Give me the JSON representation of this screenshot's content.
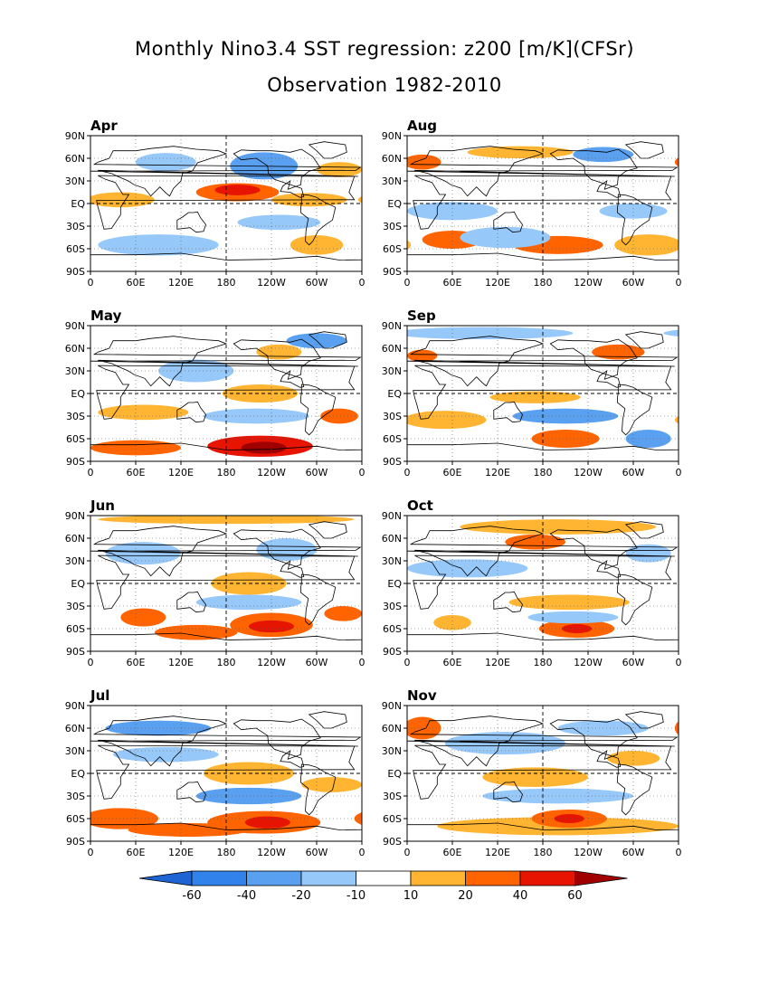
{
  "figure": {
    "title": "Monthly Nino3.4 SST regression: z200 [m/K](CFSr)",
    "subtitle": "Observation 1982-2010"
  },
  "axes": {
    "lat_ticks": [
      "90N",
      "60N",
      "30N",
      "EQ",
      "30S",
      "60S",
      "90S"
    ],
    "lon_ticks": [
      "0",
      "60E",
      "120E",
      "180",
      "120W",
      "60W",
      "0"
    ]
  },
  "colorbar": {
    "labels": [
      "-60",
      "-40",
      "-20",
      "-10",
      "10",
      "20",
      "40",
      "60"
    ],
    "colors": {
      "lt_neg60": "#1e64d2",
      "neg60_neg40": "#3282ec",
      "neg40_neg20": "#5aa0f0",
      "neg20_neg10": "#96c8fa",
      "neg10_10": "#ffffff",
      "p10_20": "#ffb432",
      "p20_40": "#ff6400",
      "p40_60": "#e61400",
      "gt_60": "#a00000"
    }
  },
  "panels": [
    {
      "month": "Apr",
      "blobs": [
        {
          "lon": 195,
          "lat": 15,
          "rx": 55,
          "ry": 12,
          "level": 2
        },
        {
          "lon": 195,
          "lat": 18,
          "rx": 30,
          "ry": 7,
          "level": 3
        },
        {
          "lon": 40,
          "lat": 5,
          "rx": 45,
          "ry": 10,
          "level": 1
        },
        {
          "lon": 290,
          "lat": 5,
          "rx": 50,
          "ry": 9,
          "level": 1
        },
        {
          "lon": 250,
          "lat": -25,
          "rx": 55,
          "ry": 10,
          "level": -1
        },
        {
          "lon": 90,
          "lat": -55,
          "rx": 80,
          "ry": 14,
          "level": -1
        },
        {
          "lon": 300,
          "lat": -55,
          "rx": 35,
          "ry": 13,
          "level": 1
        },
        {
          "lon": 230,
          "lat": 50,
          "rx": 45,
          "ry": 18,
          "level": -2
        },
        {
          "lon": 100,
          "lat": 55,
          "rx": 40,
          "ry": 12,
          "level": -1
        },
        {
          "lon": 330,
          "lat": 45,
          "rx": 30,
          "ry": 10,
          "level": 1
        }
      ]
    },
    {
      "month": "Aug",
      "blobs": [
        {
          "lon": 60,
          "lat": -48,
          "rx": 40,
          "ry": 12,
          "level": 2
        },
        {
          "lon": 200,
          "lat": -55,
          "rx": 60,
          "ry": 12,
          "level": 2
        },
        {
          "lon": 320,
          "lat": -55,
          "rx": 45,
          "ry": 14,
          "level": 1
        },
        {
          "lon": 130,
          "lat": -45,
          "rx": 60,
          "ry": 14,
          "level": -1
        },
        {
          "lon": 260,
          "lat": 65,
          "rx": 40,
          "ry": 10,
          "level": -2
        },
        {
          "lon": 150,
          "lat": 68,
          "rx": 70,
          "ry": 8,
          "level": 1
        },
        {
          "lon": 20,
          "lat": 55,
          "rx": 25,
          "ry": 10,
          "level": 2
        },
        {
          "lon": 60,
          "lat": -10,
          "rx": 60,
          "ry": 12,
          "level": -1
        },
        {
          "lon": 300,
          "lat": -10,
          "rx": 45,
          "ry": 10,
          "level": -1
        }
      ]
    },
    {
      "month": "May",
      "blobs": [
        {
          "lon": 225,
          "lat": -70,
          "rx": 70,
          "ry": 14,
          "level": 3
        },
        {
          "lon": 230,
          "lat": -72,
          "rx": 30,
          "ry": 8,
          "level": 4
        },
        {
          "lon": 225,
          "lat": 0,
          "rx": 50,
          "ry": 12,
          "level": 1
        },
        {
          "lon": 220,
          "lat": -30,
          "rx": 70,
          "ry": 10,
          "level": -1
        },
        {
          "lon": 60,
          "lat": -72,
          "rx": 60,
          "ry": 10,
          "level": 2
        },
        {
          "lon": 70,
          "lat": -25,
          "rx": 60,
          "ry": 10,
          "level": 1
        },
        {
          "lon": 330,
          "lat": -30,
          "rx": 25,
          "ry": 10,
          "level": 2
        },
        {
          "lon": 140,
          "lat": 30,
          "rx": 50,
          "ry": 15,
          "level": -1
        },
        {
          "lon": 250,
          "lat": 55,
          "rx": 30,
          "ry": 10,
          "level": 1
        },
        {
          "lon": 300,
          "lat": 70,
          "rx": 40,
          "ry": 10,
          "level": -2
        }
      ]
    },
    {
      "month": "Sep",
      "blobs": [
        {
          "lon": 210,
          "lat": -60,
          "rx": 45,
          "ry": 12,
          "level": 2
        },
        {
          "lon": 210,
          "lat": -30,
          "rx": 70,
          "ry": 10,
          "level": -2
        },
        {
          "lon": 50,
          "lat": -35,
          "rx": 55,
          "ry": 12,
          "level": 1
        },
        {
          "lon": 170,
          "lat": -5,
          "rx": 60,
          "ry": 8,
          "level": 1
        },
        {
          "lon": 280,
          "lat": 55,
          "rx": 35,
          "ry": 10,
          "level": 2
        },
        {
          "lon": 100,
          "lat": 80,
          "rx": 120,
          "ry": 8,
          "level": -1
        },
        {
          "lon": 320,
          "lat": -60,
          "rx": 30,
          "ry": 12,
          "level": -2
        },
        {
          "lon": 20,
          "lat": 50,
          "rx": 20,
          "ry": 8,
          "level": 2
        }
      ]
    },
    {
      "month": "Jun",
      "blobs": [
        {
          "lon": 240,
          "lat": -55,
          "rx": 55,
          "ry": 16,
          "level": 2
        },
        {
          "lon": 240,
          "lat": -57,
          "rx": 30,
          "ry": 8,
          "level": 3
        },
        {
          "lon": 70,
          "lat": -45,
          "rx": 30,
          "ry": 12,
          "level": 2
        },
        {
          "lon": 140,
          "lat": -65,
          "rx": 55,
          "ry": 10,
          "level": 2
        },
        {
          "lon": 335,
          "lat": -40,
          "rx": 25,
          "ry": 10,
          "level": 2
        },
        {
          "lon": 210,
          "lat": 0,
          "rx": 50,
          "ry": 15,
          "level": 1
        },
        {
          "lon": 210,
          "lat": -25,
          "rx": 70,
          "ry": 10,
          "level": -1
        },
        {
          "lon": 180,
          "lat": 85,
          "rx": 170,
          "ry": 6,
          "level": 1
        },
        {
          "lon": 70,
          "lat": 40,
          "rx": 50,
          "ry": 15,
          "level": -1
        },
        {
          "lon": 260,
          "lat": 45,
          "rx": 40,
          "ry": 15,
          "level": -1
        }
      ]
    },
    {
      "month": "Oct",
      "blobs": [
        {
          "lon": 225,
          "lat": -60,
          "rx": 50,
          "ry": 12,
          "level": 2
        },
        {
          "lon": 225,
          "lat": -60,
          "rx": 20,
          "ry": 6,
          "level": 3
        },
        {
          "lon": 60,
          "lat": -52,
          "rx": 25,
          "ry": 10,
          "level": 1
        },
        {
          "lon": 215,
          "lat": -25,
          "rx": 80,
          "ry": 10,
          "level": 1
        },
        {
          "lon": 220,
          "lat": -45,
          "rx": 60,
          "ry": 8,
          "level": -1
        },
        {
          "lon": 200,
          "lat": 75,
          "rx": 130,
          "ry": 10,
          "level": 1
        },
        {
          "lon": 170,
          "lat": 55,
          "rx": 40,
          "ry": 10,
          "level": 2
        },
        {
          "lon": 80,
          "lat": 20,
          "rx": 80,
          "ry": 12,
          "level": -1
        },
        {
          "lon": 320,
          "lat": 40,
          "rx": 30,
          "ry": 12,
          "level": -1
        }
      ]
    },
    {
      "month": "Jul",
      "blobs": [
        {
          "lon": 230,
          "lat": -65,
          "rx": 75,
          "ry": 15,
          "level": 2
        },
        {
          "lon": 235,
          "lat": -65,
          "rx": 30,
          "ry": 8,
          "level": 3
        },
        {
          "lon": 40,
          "lat": -60,
          "rx": 50,
          "ry": 14,
          "level": 2
        },
        {
          "lon": 130,
          "lat": -75,
          "rx": 80,
          "ry": 9,
          "level": 2
        },
        {
          "lon": 210,
          "lat": -30,
          "rx": 70,
          "ry": 11,
          "level": -2
        },
        {
          "lon": 210,
          "lat": 0,
          "rx": 60,
          "ry": 15,
          "level": 1
        },
        {
          "lon": 320,
          "lat": -15,
          "rx": 40,
          "ry": 10,
          "level": 1
        },
        {
          "lon": 100,
          "lat": 25,
          "rx": 70,
          "ry": 10,
          "level": -1
        },
        {
          "lon": 90,
          "lat": 60,
          "rx": 70,
          "ry": 10,
          "level": -2
        }
      ]
    },
    {
      "month": "Nov",
      "blobs": [
        {
          "lon": 200,
          "lat": -70,
          "rx": 160,
          "ry": 12,
          "level": 1
        },
        {
          "lon": 215,
          "lat": -60,
          "rx": 50,
          "ry": 12,
          "level": 2
        },
        {
          "lon": 215,
          "lat": -60,
          "rx": 20,
          "ry": 6,
          "level": 3
        },
        {
          "lon": 200,
          "lat": -30,
          "rx": 100,
          "ry": 10,
          "level": -1
        },
        {
          "lon": 170,
          "lat": -5,
          "rx": 70,
          "ry": 13,
          "level": 1
        },
        {
          "lon": 20,
          "lat": 60,
          "rx": 25,
          "ry": 15,
          "level": 2
        },
        {
          "lon": 300,
          "lat": 20,
          "rx": 35,
          "ry": 10,
          "level": 1
        },
        {
          "lon": 130,
          "lat": 40,
          "rx": 80,
          "ry": 15,
          "level": -1
        },
        {
          "lon": 260,
          "lat": 60,
          "rx": 60,
          "ry": 10,
          "level": -1
        }
      ]
    }
  ]
}
